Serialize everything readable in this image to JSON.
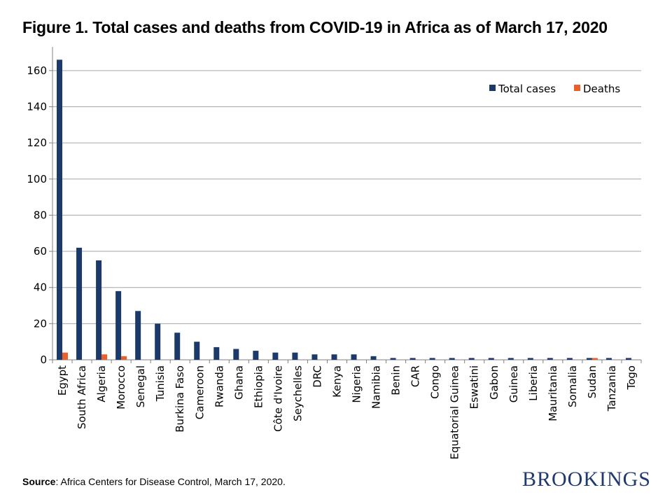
{
  "title": "Figure 1. Total cases and deaths from COVID-19 in Africa as of March 17, 2020",
  "source": {
    "label": "Source",
    "text": ": Africa Centers for Disease Control, March 17, 2020."
  },
  "brand": "BROOKINGS",
  "colors": {
    "cases": "#1b3a6b",
    "deaths": "#e8612c",
    "grid": "#a6a6a6",
    "axis": "#808080"
  },
  "chart_data": {
    "type": "bar",
    "title": "Figure 1. Total cases and deaths from COVID-19 in Africa as of March 17, 2020",
    "xlabel": "",
    "ylabel": "",
    "ylim": [
      0,
      170
    ],
    "yticks": [
      0,
      20,
      40,
      60,
      80,
      100,
      120,
      140,
      160
    ],
    "grid": true,
    "legend_position": "top-right",
    "categories": [
      "Egypt",
      "South Africa",
      "Algeria",
      "Morocco",
      "Senegal",
      "Tunisia",
      "Burkina Faso",
      "Cameroon",
      "Rwanda",
      "Ghana",
      "Ethiopia",
      "Côte d'Ivoire",
      "Seychelles",
      "DRC",
      "Kenya",
      "Nigeria",
      "Namibia",
      "Benin",
      "CAR",
      "Congo",
      "Equatorial Guinea",
      "Eswatini",
      "Gabon",
      "Guinea",
      "Liberia",
      "Mauritania",
      "Somalia",
      "Sudan",
      "Tanzania",
      "Togo"
    ],
    "series": [
      {
        "name": "Total cases",
        "values": [
          166,
          62,
          55,
          38,
          27,
          20,
          15,
          10,
          7,
          6,
          5,
          4,
          4,
          3,
          3,
          3,
          2,
          1,
          1,
          1,
          1,
          1,
          1,
          1,
          1,
          1,
          1,
          1,
          1,
          1
        ]
      },
      {
        "name": "Deaths",
        "values": [
          4,
          0,
          3,
          2,
          0,
          0,
          0,
          0,
          0,
          0,
          0,
          0,
          0,
          0,
          0,
          0,
          0,
          0,
          0,
          0,
          0,
          0,
          0,
          0,
          0,
          0,
          0,
          1,
          0,
          0
        ]
      }
    ]
  }
}
